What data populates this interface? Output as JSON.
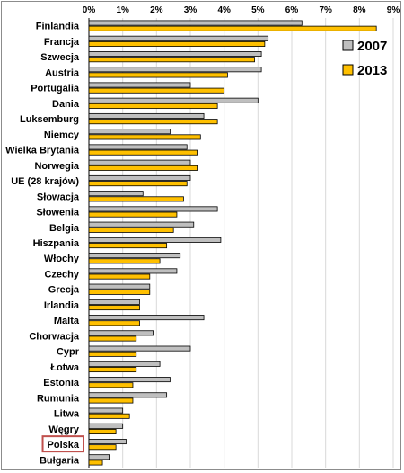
{
  "chart_data": {
    "type": "bar",
    "orientation": "horizontal",
    "xlim": [
      0,
      9
    ],
    "x_ticks": [
      "0%",
      "1%",
      "2%",
      "3%",
      "4%",
      "5%",
      "6%",
      "7%",
      "8%",
      "9%"
    ],
    "grid": true,
    "legend_position": "top-right",
    "highlighted_category": "Polska",
    "categories": [
      "Finlandia",
      "Francja",
      "Szwecja",
      "Austria",
      "Portugalia",
      "Dania",
      "Luksemburg",
      "Niemcy",
      "Wielka Brytania",
      "Norwegia",
      "UE (28 krajów)",
      "Słowacja",
      "Słowenia",
      "Belgia",
      "Hiszpania",
      "Włochy",
      "Czechy",
      "Grecja",
      "Irlandia",
      "Malta",
      "Chorwacja",
      "Cypr",
      "Łotwa",
      "Estonia",
      "Rumunia",
      "Litwa",
      "Węgry",
      "Polska",
      "Bułgaria"
    ],
    "series": [
      {
        "name": "2007",
        "color": "#bfbfbf",
        "values": [
          6.3,
          5.3,
          5.1,
          5.1,
          3.0,
          5.0,
          3.4,
          2.4,
          2.9,
          3.0,
          3.0,
          1.6,
          3.8,
          3.1,
          3.9,
          2.7,
          2.6,
          1.8,
          1.5,
          3.4,
          1.9,
          3.0,
          2.1,
          2.4,
          2.3,
          1.0,
          1.0,
          1.1,
          0.6
        ]
      },
      {
        "name": "2013",
        "color": "#ffc000",
        "values": [
          8.5,
          5.2,
          4.9,
          4.1,
          4.0,
          3.8,
          3.8,
          3.3,
          3.2,
          3.2,
          2.9,
          2.8,
          2.6,
          2.5,
          2.3,
          2.1,
          1.8,
          1.8,
          1.5,
          1.5,
          1.4,
          1.4,
          1.4,
          1.3,
          1.3,
          1.2,
          0.8,
          0.8,
          0.4
        ]
      }
    ]
  }
}
